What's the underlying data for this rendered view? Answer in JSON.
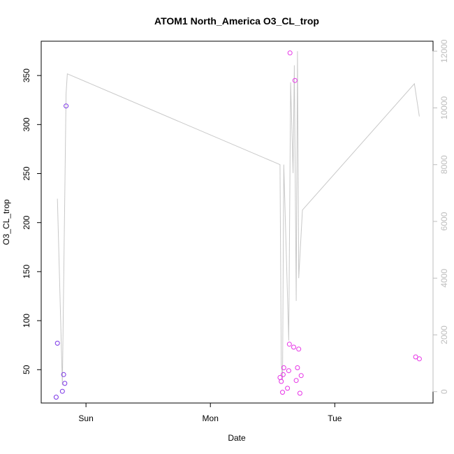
{
  "chart_data": {
    "type": "scatter",
    "title": "ATOM1 North_America O3_CL_trop",
    "xlabel": "Date",
    "ylabel": "O3_CL_trop",
    "x_tick_labels": [
      "Sun",
      "Mon",
      "Tue"
    ],
    "x_ticks_day": [
      1,
      2,
      3
    ],
    "xlim_day": [
      0.64,
      3.79
    ],
    "ylim": [
      16,
      385
    ],
    "y_ticks": [
      50,
      100,
      150,
      200,
      250,
      300,
      350
    ],
    "y2lim": [
      -400,
      12350
    ],
    "y2_ticks": [
      0,
      2000,
      4000,
      6000,
      8000,
      10000,
      12000
    ],
    "grid": false,
    "colors": {
      "line": "#c8c8c8",
      "right_axis": "#bdbdbd",
      "point_early": "#7a33e6",
      "point_late": "#e633e6"
    },
    "series": [
      {
        "kind": "points",
        "axis": "left",
        "points": [
          {
            "day": 0.76,
            "value": 22
          },
          {
            "day": 0.77,
            "value": 77
          },
          {
            "day": 0.81,
            "value": 28
          },
          {
            "day": 0.82,
            "value": 45
          },
          {
            "day": 0.83,
            "value": 36
          },
          {
            "day": 0.84,
            "value": 319
          },
          {
            "day": 2.56,
            "value": 42
          },
          {
            "day": 2.57,
            "value": 38
          },
          {
            "day": 2.58,
            "value": 27
          },
          {
            "day": 2.585,
            "value": 45
          },
          {
            "day": 2.59,
            "value": 52
          },
          {
            "day": 2.62,
            "value": 31
          },
          {
            "day": 2.63,
            "value": 49
          },
          {
            "day": 2.635,
            "value": 76
          },
          {
            "day": 2.64,
            "value": 373
          },
          {
            "day": 2.67,
            "value": 73
          },
          {
            "day": 2.68,
            "value": 345
          },
          {
            "day": 2.69,
            "value": 39
          },
          {
            "day": 2.7,
            "value": 52
          },
          {
            "day": 2.71,
            "value": 71
          },
          {
            "day": 2.72,
            "value": 26
          },
          {
            "day": 2.73,
            "value": 44
          },
          {
            "day": 3.65,
            "value": 63
          },
          {
            "day": 3.68,
            "value": 61
          }
        ]
      },
      {
        "kind": "line",
        "axis": "right",
        "points": [
          {
            "day": 0.77,
            "value": 6800
          },
          {
            "day": 0.81,
            "value": 230
          },
          {
            "day": 0.84,
            "value": 10500
          },
          {
            "day": 0.85,
            "value": 11200
          },
          {
            "day": 2.56,
            "value": 8000
          },
          {
            "day": 2.57,
            "value": 1000
          },
          {
            "day": 2.58,
            "value": 400
          },
          {
            "day": 2.59,
            "value": 8000
          },
          {
            "day": 2.63,
            "value": 1800
          },
          {
            "day": 2.645,
            "value": 10900
          },
          {
            "day": 2.665,
            "value": 7700
          },
          {
            "day": 2.675,
            "value": 11500
          },
          {
            "day": 2.69,
            "value": 3200
          },
          {
            "day": 2.7,
            "value": 12000
          },
          {
            "day": 2.71,
            "value": 4000
          },
          {
            "day": 2.74,
            "value": 6400
          },
          {
            "day": 3.64,
            "value": 10850
          },
          {
            "day": 3.68,
            "value": 9700
          }
        ]
      }
    ]
  }
}
